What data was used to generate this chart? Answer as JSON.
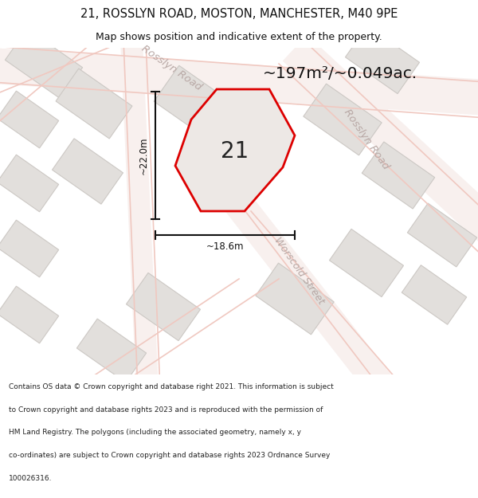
{
  "title": "21, ROSSLYN ROAD, MOSTON, MANCHESTER, M40 9PE",
  "subtitle": "Map shows position and indicative extent of the property.",
  "area_text": "~197m²/~0.049ac.",
  "label_21": "21",
  "dim_height": "~22.0m",
  "dim_width": "~18.6m",
  "road_label_upper": "Rosslyn Road",
  "road_label_right": "Rosslyn Road",
  "road_label_lower": "Worscold Street",
  "footer_lines": [
    "Contains OS data © Crown copyright and database right 2021. This information is subject",
    "to Crown copyright and database rights 2023 and is reproduced with the permission of",
    "HM Land Registry. The polygons (including the associated geometry, namely x, y",
    "co-ordinates) are subject to Crown copyright and database rights 2023 Ordnance Survey",
    "100026316."
  ],
  "map_bg": "#f0eded",
  "block_fc": "#e2dfdc",
  "block_ec": "#ccc8c4",
  "road_line_color": "#f0c8c0",
  "property_fill": "#ede8e5",
  "property_edge": "#dd0000",
  "dim_line_color": "#111111",
  "road_text_color": "#b8a8a5",
  "title_color": "#111111",
  "white": "#ffffff"
}
